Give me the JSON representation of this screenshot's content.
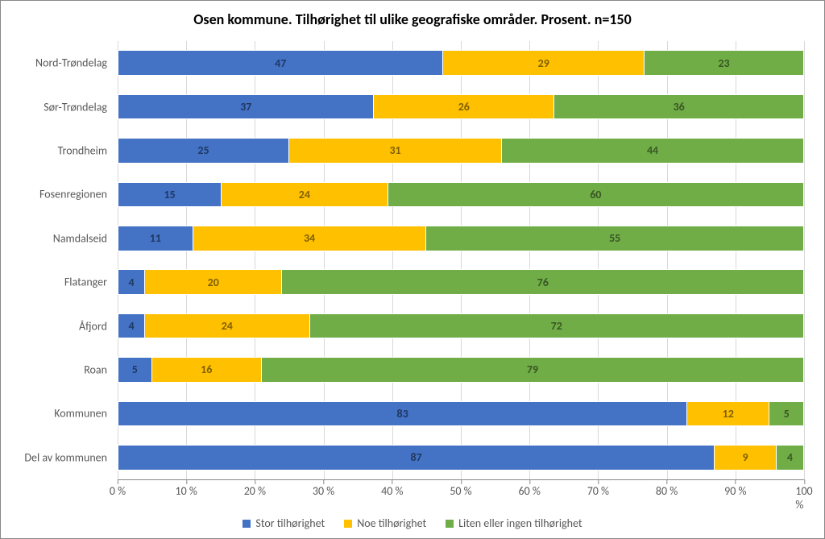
{
  "chart": {
    "type": "stacked-bar-horizontal",
    "title": "Osen kommune. Tilhørighet til ulike geografiske områder. Prosent. n=150",
    "title_fontsize": 18,
    "title_fontweight": "bold",
    "title_color": "#000000",
    "background_color": "#ffffff",
    "border_color": "#888888",
    "grid_color": "#d9d9d9",
    "axis_line_color": "#898989",
    "tick_label_color": "#595959",
    "tick_label_fontsize": 14,
    "category_label_fontsize": 14,
    "data_label_fontsize": 14,
    "data_label_fontweight": "bold",
    "bar_height_ratio": 0.58,
    "xlim": [
      0,
      100
    ],
    "xtick_step": 10,
    "xtick_suffix": " %",
    "categories": [
      "Nord-Trøndelag",
      "Sør-Trøndelag",
      "Trondheim",
      "Fosenregionen",
      "Namdalseid",
      "Flatanger",
      "Åfjord",
      "Roan",
      "Kommunen",
      "Del av kommunen"
    ],
    "series": [
      {
        "name": "Stor tilhørighet",
        "color": "#4472c4",
        "label_color": "#1f3864"
      },
      {
        "name": "Noe tilhørighet",
        "color": "#ffc000",
        "label_color": "#7f6000"
      },
      {
        "name": "Liten eller ingen tilhørighet",
        "color": "#70ad47",
        "label_color": "#385723"
      }
    ],
    "data": [
      [
        47,
        29,
        23
      ],
      [
        37,
        26,
        36
      ],
      [
        25,
        31,
        44
      ],
      [
        15,
        24,
        60
      ],
      [
        11,
        34,
        55
      ],
      [
        4,
        20,
        76
      ],
      [
        4,
        24,
        72
      ],
      [
        5,
        16,
        79
      ],
      [
        83,
        12,
        5
      ],
      [
        87,
        9,
        4
      ]
    ],
    "legend_fontsize": 14
  }
}
